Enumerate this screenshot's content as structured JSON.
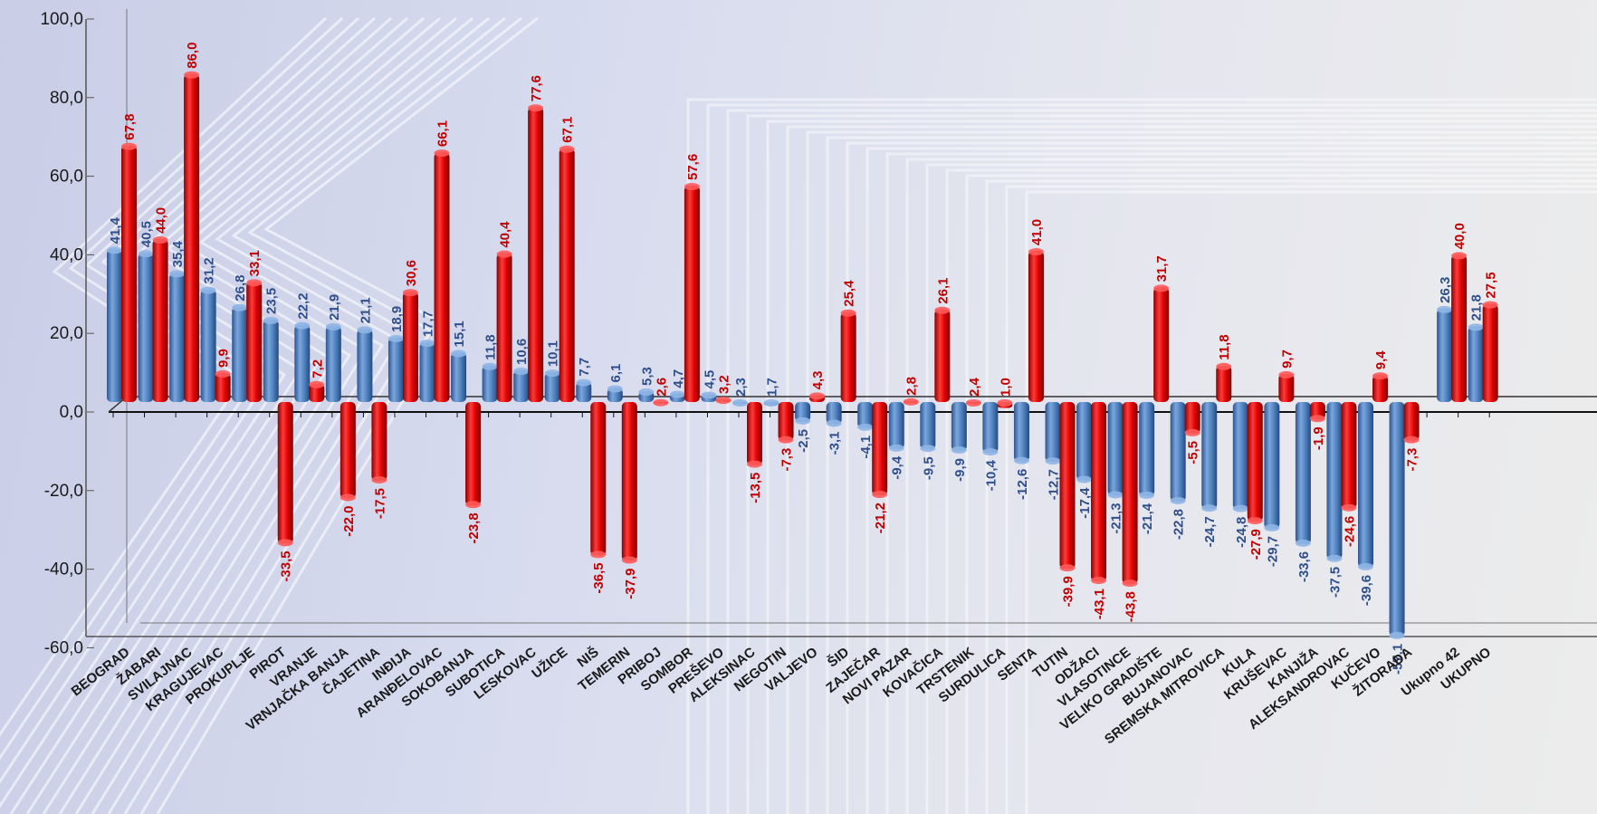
{
  "chart_data": {
    "type": "bar",
    "yticks": [
      "100,0",
      "80,0",
      "60,0",
      "40,0",
      "20,0",
      "0,0",
      "-20,0",
      "-40,0",
      "-60,0"
    ],
    "ylim": [
      -60,
      100
    ],
    "colors": {
      "blue": "#4f81bd",
      "red": "#e00000"
    },
    "categories": [
      {
        "name": "BEOGRAD",
        "blue": 41.4,
        "red": 67.8,
        "blue_label": "41,4",
        "red_label": "67,8"
      },
      {
        "name": "ŽABARI",
        "blue": 40.5,
        "red": 44.0,
        "blue_label": "40,5",
        "red_label": "44,0"
      },
      {
        "name": "SVILAJNAC",
        "blue": 35.4,
        "red": 86.0,
        "blue_label": "35,4",
        "red_label": "86,0"
      },
      {
        "name": "KRAGUJEVAC",
        "blue": 31.2,
        "red": 9.9,
        "blue_label": "31,2",
        "red_label": "9,9"
      },
      {
        "name": "PROKUPLJE",
        "blue": 26.8,
        "red": 33.1,
        "blue_label": "26,8",
        "red_label": "33,1"
      },
      {
        "name": "PIROT",
        "blue": 23.5,
        "red": -33.5,
        "blue_label": "23,5",
        "red_label": "-33,5"
      },
      {
        "name": "VRANJE",
        "blue": 22.2,
        "red": 7.2,
        "blue_label": "22,2",
        "red_label": "7,2"
      },
      {
        "name": "VRNJAČKA BANJA",
        "blue": 21.9,
        "red": -22.0,
        "blue_label": "21,9",
        "red_label": "-22,0"
      },
      {
        "name": "ČAJETINA",
        "blue": 21.1,
        "red": -17.5,
        "blue_label": "21,1",
        "red_label": "-17,5"
      },
      {
        "name": "INĐIJA",
        "blue": 18.9,
        "red": 30.6,
        "blue_label": "18,9",
        "red_label": "30,6"
      },
      {
        "name": "ARANĐELOVAC",
        "blue": 17.7,
        "red": 66.1,
        "blue_label": "17,7",
        "red_label": "66,1"
      },
      {
        "name": "SOKOBANJA",
        "blue": 15.1,
        "red": -23.8,
        "blue_label": "15,1",
        "red_label": "-23,8"
      },
      {
        "name": "SUBOTICA",
        "blue": 11.8,
        "red": 40.4,
        "blue_label": "11,8",
        "red_label": "40,4"
      },
      {
        "name": "LESKOVAC",
        "blue": 10.6,
        "red": 77.6,
        "blue_label": "10,6",
        "red_label": "77,6"
      },
      {
        "name": "UŽICE",
        "blue": 10.1,
        "red": 67.1,
        "blue_label": "10,1",
        "red_label": "67,1"
      },
      {
        "name": "NIŠ",
        "blue": 7.7,
        "red": -36.5,
        "blue_label": "7,7",
        "red_label": "-36,5"
      },
      {
        "name": "TEMERIN",
        "blue": 6.1,
        "red": -37.9,
        "blue_label": "6,1",
        "red_label": "-37,9"
      },
      {
        "name": "PRIBOJ",
        "blue": 5.3,
        "red": 2.6,
        "blue_label": "5,3",
        "red_label": "2,6"
      },
      {
        "name": "SOMBOR",
        "blue": 4.7,
        "red": 57.6,
        "blue_label": "4,7",
        "red_label": "57,6"
      },
      {
        "name": "PREŠEVO",
        "blue": 4.5,
        "red": 3.2,
        "blue_label": "4,5",
        "red_label": "3,2"
      },
      {
        "name": "ALEKSINAC",
        "blue": 2.3,
        "red": -13.5,
        "blue_label": "2,3",
        "red_label": "-13,5"
      },
      {
        "name": "NEGOTIN",
        "blue": 1.7,
        "red": -7.3,
        "blue_label": "1,7",
        "red_label": "-7,3"
      },
      {
        "name": "VALJEVO",
        "blue": -2.5,
        "red": 4.3,
        "blue_label": "-2,5",
        "red_label": "4,3"
      },
      {
        "name": "ŠID",
        "blue": -3.1,
        "red": 25.4,
        "blue_label": "-3,1",
        "red_label": "25,4"
      },
      {
        "name": "ZAJEČAR",
        "blue": -4.1,
        "red": -21.2,
        "blue_label": "-4,1",
        "red_label": "-21,2"
      },
      {
        "name": "NOVI PAZAR",
        "blue": -9.4,
        "red": 2.8,
        "blue_label": "-9,4",
        "red_label": "2,8"
      },
      {
        "name": "KOVAČICA",
        "blue": -9.5,
        "red": 26.1,
        "blue_label": "-9,5",
        "red_label": "26,1"
      },
      {
        "name": "TRSTENIK",
        "blue": -9.9,
        "red": 2.4,
        "blue_label": "-9,9",
        "red_label": "2,4"
      },
      {
        "name": "SURDULICA",
        "blue": -10.4,
        "red": 1.0,
        "blue_label": "-10,4",
        "red_label": "1,0"
      },
      {
        "name": "SENTA",
        "blue": -12.6,
        "red": 41.0,
        "blue_label": "-12,6",
        "red_label": "41,0"
      },
      {
        "name": "TUTIN",
        "blue": -12.7,
        "red": -39.9,
        "blue_label": "-12,7",
        "red_label": "-39,9"
      },
      {
        "name": "ODŽACI",
        "blue": -17.4,
        "red": -43.1,
        "blue_label": "-17,4",
        "red_label": "-43,1"
      },
      {
        "name": "VLASOTINCE",
        "blue": -21.3,
        "red": -43.8,
        "blue_label": "-21,3",
        "red_label": "-43,8"
      },
      {
        "name": "VELIKO GRADIŠTE",
        "blue": -21.4,
        "red": 31.7,
        "blue_label": "-21,4",
        "red_label": "31,7"
      },
      {
        "name": "BUJANOVAC",
        "blue": -22.8,
        "red": -5.5,
        "blue_label": "-22,8",
        "red_label": "-5,5"
      },
      {
        "name": "SREMSKA MITROVICA",
        "blue": -24.7,
        "red": 11.8,
        "blue_label": "-24,7",
        "red_label": "11,8"
      },
      {
        "name": "KULA",
        "blue": -24.8,
        "red": -27.9,
        "blue_label": "-24,8",
        "red_label": "-27,9"
      },
      {
        "name": "KRUŠEVAC",
        "blue": -29.7,
        "red": 9.7,
        "blue_label": "-29,7",
        "red_label": "9,7"
      },
      {
        "name": "KANJIŽA",
        "blue": -33.6,
        "red": -1.9,
        "blue_label": "-33,6",
        "red_label": "-1,9"
      },
      {
        "name": "ALEKSANDROVAC",
        "blue": -37.5,
        "red": -24.6,
        "blue_label": "-37,5",
        "red_label": "-24,6"
      },
      {
        "name": "KUČEVO",
        "blue": -39.6,
        "red": 9.4,
        "blue_label": "-39,6",
        "red_label": "9,4"
      },
      {
        "name": "ŽITORAĐA",
        "blue": -57.1,
        "red": -7.3,
        "blue_label": "-57,1",
        "red_label": "-7,3"
      },
      {
        "name": "Ukupno 42",
        "blue": 26.3,
        "red": 40.0,
        "blue_label": "26,3",
        "red_label": "40,0"
      },
      {
        "name": "UKUPNO",
        "blue": 21.8,
        "red": 27.5,
        "blue_label": "21,8",
        "red_label": "27,5"
      }
    ]
  }
}
